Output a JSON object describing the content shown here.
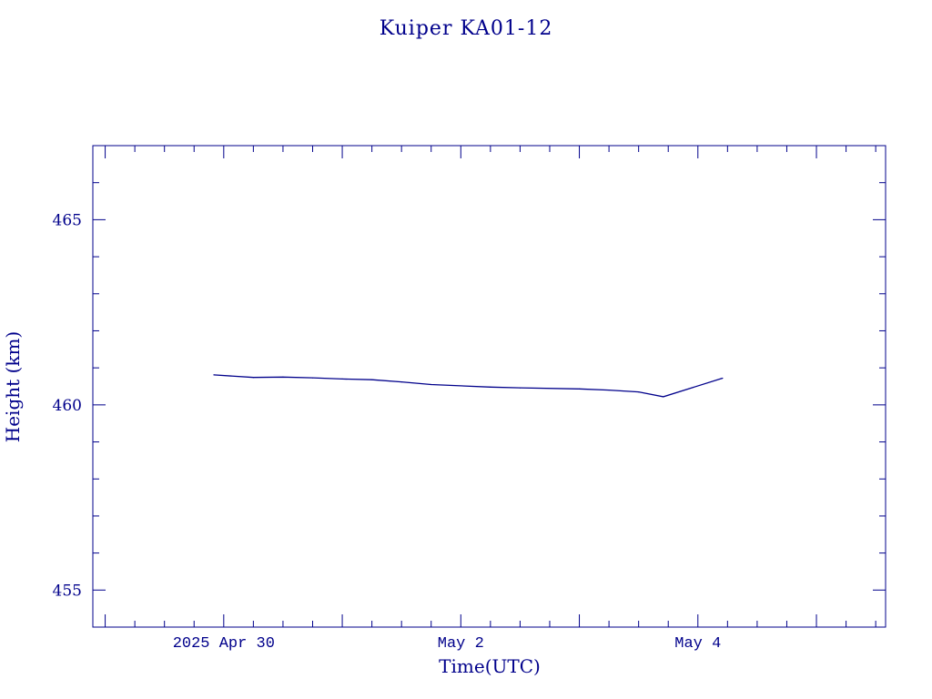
{
  "chart_data": {
    "type": "line",
    "title": "Kuiper KA01-12",
    "xlabel": "Time(UTC)",
    "ylabel": "Height (km)",
    "x_ticks": [
      {
        "date": "2025-04-30",
        "label": "2025 Apr 30"
      },
      {
        "date": "2025-05-02",
        "label": "May  2"
      },
      {
        "date": "2025-05-04",
        "label": "May  4"
      }
    ],
    "y_ticks": [
      455,
      460,
      465
    ],
    "xlim": [
      "2025-04-28T21:30",
      "2025-05-05T14:00"
    ],
    "ylim": [
      454,
      467
    ],
    "grid": false,
    "series": [
      {
        "color": "#00008b",
        "x": [
          "2025-04-29T22:00",
          "2025-04-30T06:00",
          "2025-04-30T12:00",
          "2025-04-30T18:00",
          "2025-05-01T00:00",
          "2025-05-01T06:00",
          "2025-05-01T12:00",
          "2025-05-01T18:00",
          "2025-05-02T06:00",
          "2025-05-02T12:00",
          "2025-05-03T00:00",
          "2025-05-03T06:00",
          "2025-05-03T12:00",
          "2025-05-03T17:00",
          "2025-05-04T05:00"
        ],
        "y": [
          460.81,
          460.74,
          460.75,
          460.73,
          460.7,
          460.68,
          460.62,
          460.55,
          460.48,
          460.46,
          460.43,
          460.4,
          460.35,
          460.22,
          460.72
        ]
      }
    ]
  },
  "colors": {
    "axis": "#00008b",
    "text": "#00008b",
    "background": "#ffffff"
  }
}
